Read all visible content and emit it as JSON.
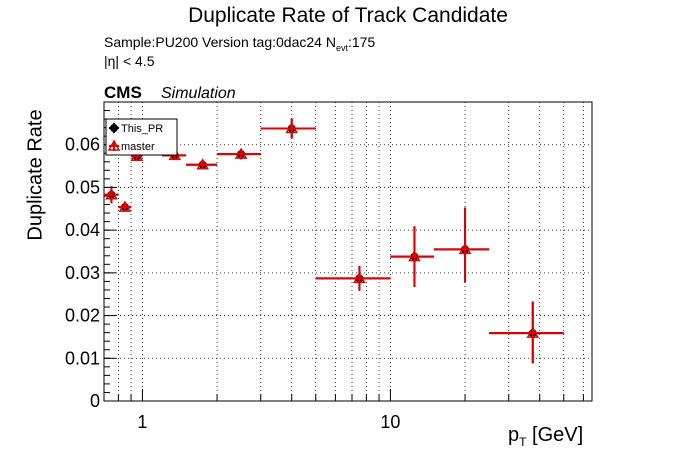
{
  "header": {
    "title": "Duplicate Rate of Track Candidate",
    "sample_prefix": "Sample:PU200   Version tag:0dac24  N",
    "sample_sub": "evt",
    "sample_suffix": ":175",
    "eta_cut": "|η| < 4.5",
    "cms": "CMS",
    "simulation": "Simulation"
  },
  "chart_data": {
    "type": "scatter",
    "title": "Duplicate Rate of Track Candidate",
    "ylabel": "Duplicate Rate",
    "xlabel_main": "p",
    "xlabel_sub": "T",
    "xlabel_unit": " [GeV]",
    "xscale": "log",
    "xlim": [
      0.7,
      65
    ],
    "ylim": [
      0,
      0.07
    ],
    "grid": true,
    "legend_position": "top-left",
    "yticks": [
      {
        "v": 0,
        "label": "0"
      },
      {
        "v": 0.01,
        "label": "0.01"
      },
      {
        "v": 0.02,
        "label": "0.02"
      },
      {
        "v": 0.03,
        "label": "0.03"
      },
      {
        "v": 0.04,
        "label": "0.04"
      },
      {
        "v": 0.05,
        "label": "0.05"
      },
      {
        "v": 0.06,
        "label": "0.06"
      }
    ],
    "xticks": [
      {
        "v": 1,
        "label": "1"
      },
      {
        "v": 10,
        "label": "10"
      }
    ],
    "series": [
      {
        "name": "This_PR",
        "marker": "circle",
        "color": "#000000",
        "points": [
          {
            "x": 0.75,
            "xlo": 0.7,
            "xhi": 0.8,
            "y": 0.0483,
            "ylo": 0.0463,
            "yhi": 0.0503
          },
          {
            "x": 0.85,
            "xlo": 0.8,
            "xhi": 0.9,
            "y": 0.0454,
            "ylo": 0.0446,
            "yhi": 0.0462
          },
          {
            "x": 0.95,
            "xlo": 0.9,
            "xhi": 1.0,
            "y": 0.0573,
            "ylo": 0.0565,
            "yhi": 0.0581
          },
          {
            "x": 1.35,
            "xlo": 1.2,
            "xhi": 1.5,
            "y": 0.0575,
            "ylo": 0.0567,
            "yhi": 0.0583
          },
          {
            "x": 1.75,
            "xlo": 1.5,
            "xhi": 2.0,
            "y": 0.0553,
            "ylo": 0.0545,
            "yhi": 0.0561
          },
          {
            "x": 2.5,
            "xlo": 2.0,
            "xhi": 3.0,
            "y": 0.0578,
            "ylo": 0.0566,
            "yhi": 0.059
          },
          {
            "x": 4.0,
            "xlo": 3.0,
            "xhi": 5.0,
            "y": 0.0638,
            "ylo": 0.0615,
            "yhi": 0.0661
          },
          {
            "x": 7.5,
            "xlo": 5.0,
            "xhi": 10.0,
            "y": 0.0287,
            "ylo": 0.0258,
            "yhi": 0.0316
          },
          {
            "x": 12.5,
            "xlo": 10.0,
            "xhi": 15.0,
            "y": 0.0338,
            "ylo": 0.0267,
            "yhi": 0.0409
          },
          {
            "x": 20.0,
            "xlo": 15.0,
            "xhi": 25.0,
            "y": 0.0355,
            "ylo": 0.0278,
            "yhi": 0.0453
          },
          {
            "x": 37.5,
            "xlo": 25.0,
            "xhi": 50.0,
            "y": 0.0159,
            "ylo": 0.0088,
            "yhi": 0.0233
          }
        ]
      },
      {
        "name": "master",
        "marker": "open-triangle",
        "color": "#e00000",
        "points": [
          {
            "x": 0.75,
            "xlo": 0.7,
            "xhi": 0.8,
            "y": 0.0483,
            "ylo": 0.0463,
            "yhi": 0.0503
          },
          {
            "x": 0.85,
            "xlo": 0.8,
            "xhi": 0.9,
            "y": 0.0454,
            "ylo": 0.0446,
            "yhi": 0.0462
          },
          {
            "x": 0.95,
            "xlo": 0.9,
            "xhi": 1.0,
            "y": 0.0573,
            "ylo": 0.0565,
            "yhi": 0.0581
          },
          {
            "x": 1.35,
            "xlo": 1.2,
            "xhi": 1.5,
            "y": 0.0575,
            "ylo": 0.0567,
            "yhi": 0.0583
          },
          {
            "x": 1.75,
            "xlo": 1.5,
            "xhi": 2.0,
            "y": 0.0553,
            "ylo": 0.0545,
            "yhi": 0.0561
          },
          {
            "x": 2.5,
            "xlo": 2.0,
            "xhi": 3.0,
            "y": 0.0578,
            "ylo": 0.0566,
            "yhi": 0.059
          },
          {
            "x": 4.0,
            "xlo": 3.0,
            "xhi": 5.0,
            "y": 0.0638,
            "ylo": 0.0615,
            "yhi": 0.0661
          },
          {
            "x": 7.5,
            "xlo": 5.0,
            "xhi": 10.0,
            "y": 0.0287,
            "ylo": 0.0258,
            "yhi": 0.0316
          },
          {
            "x": 12.5,
            "xlo": 10.0,
            "xhi": 15.0,
            "y": 0.0338,
            "ylo": 0.0267,
            "yhi": 0.0409
          },
          {
            "x": 20.0,
            "xlo": 15.0,
            "xhi": 25.0,
            "y": 0.0355,
            "ylo": 0.0278,
            "yhi": 0.0453
          },
          {
            "x": 37.5,
            "xlo": 25.0,
            "xhi": 50.0,
            "y": 0.0159,
            "ylo": 0.0088,
            "yhi": 0.0233
          }
        ]
      }
    ]
  }
}
